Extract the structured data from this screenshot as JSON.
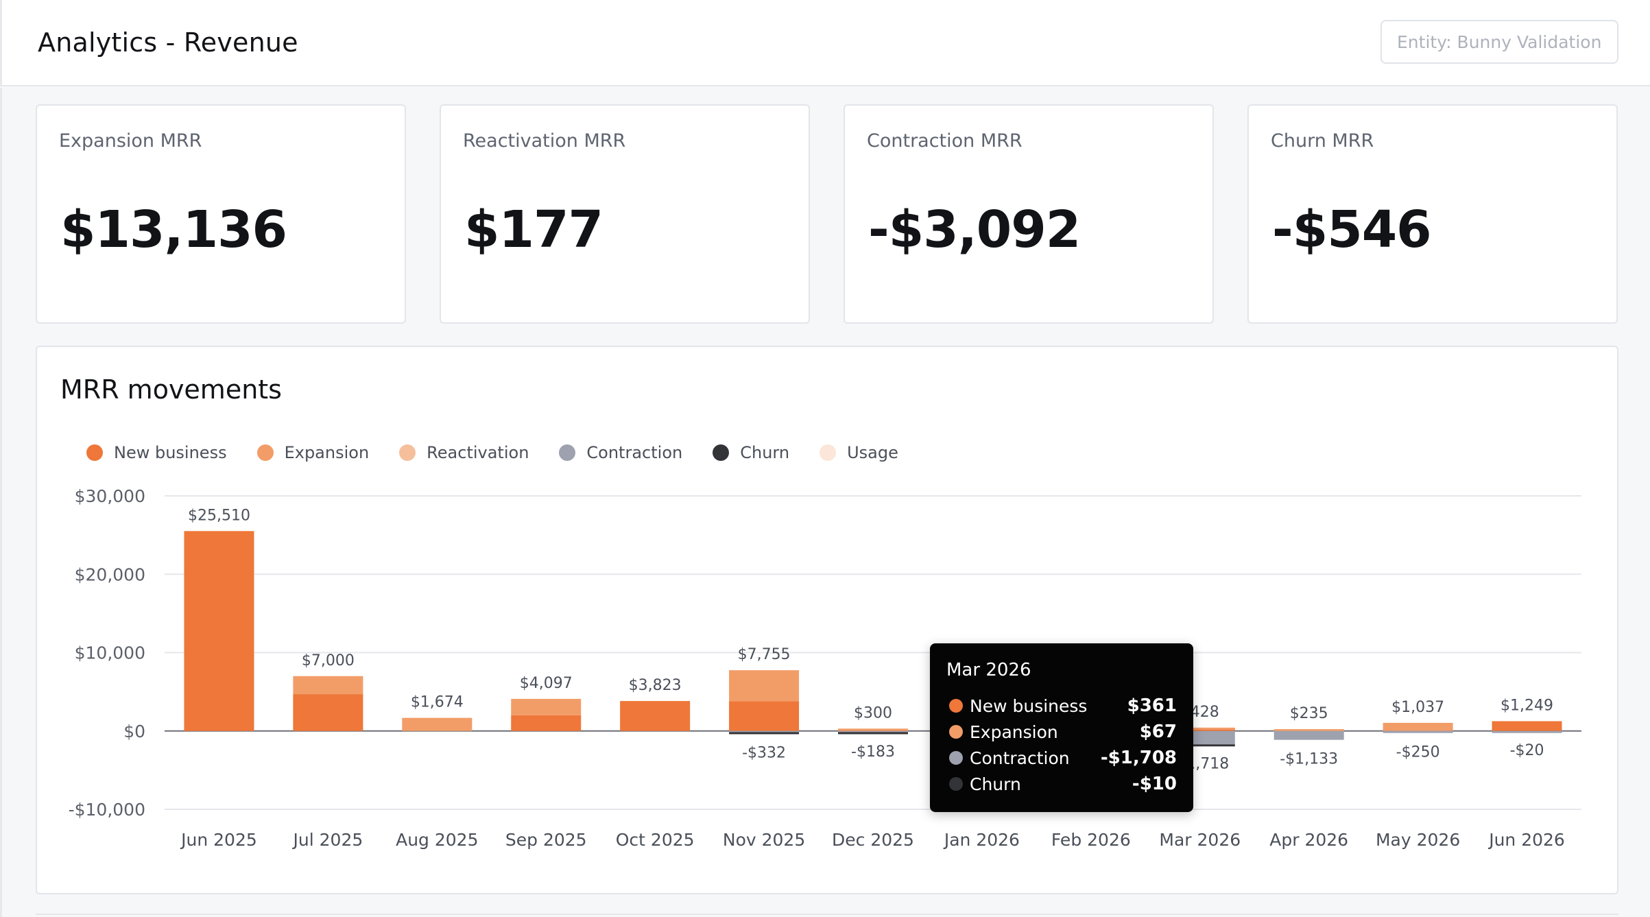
{
  "header": {
    "title": "Analytics - Revenue",
    "entity_placeholder": "Entity: Bunny Validation"
  },
  "kpis": [
    {
      "label": "Expansion MRR",
      "value": "$13,136"
    },
    {
      "label": "Reactivation MRR",
      "value": "$177"
    },
    {
      "label": "Contraction MRR",
      "value": "-$3,092"
    },
    {
      "label": "Churn MRR",
      "value": "-$546"
    }
  ],
  "chart": {
    "title": "MRR movements",
    "legend": [
      {
        "name": "New business",
        "color": "#ee7739"
      },
      {
        "name": "Expansion",
        "color": "#f29d68"
      },
      {
        "name": "Reactivation",
        "color": "#f5bf9c"
      },
      {
        "name": "Contraction",
        "color": "#9ea1ae"
      },
      {
        "name": "Churn",
        "color": "#333438"
      },
      {
        "name": "Usage",
        "color": "#fbe6d9"
      }
    ]
  },
  "chart_data": {
    "type": "bar",
    "stacked": true,
    "categories": [
      "Jun 2025",
      "Jul 2025",
      "Aug 2025",
      "Sep 2025",
      "Oct 2025",
      "Nov 2025",
      "Dec 2025",
      "Jan 2026",
      "Feb 2026",
      "Mar 2026",
      "Apr 2026",
      "May 2026",
      "Jun 2026"
    ],
    "series": [
      {
        "name": "New business",
        "color": "#ee7739",
        "values": [
          25510,
          4700,
          0,
          2000,
          3823,
          3800,
          150,
          0,
          0,
          361,
          100,
          0,
          1249
        ]
      },
      {
        "name": "Expansion",
        "color": "#f29d68",
        "values": [
          0,
          2300,
          1674,
          2097,
          0,
          3955,
          150,
          0,
          0,
          67,
          135,
          1037,
          0
        ]
      },
      {
        "name": "Reactivation",
        "color": "#f5bf9c",
        "values": [
          0,
          0,
          0,
          0,
          0,
          0,
          0,
          0,
          0,
          0,
          0,
          0,
          0
        ]
      },
      {
        "name": "Contraction",
        "color": "#9ea1ae",
        "values": [
          0,
          0,
          0,
          0,
          0,
          -150,
          -150,
          0,
          0,
          -1708,
          -1133,
          -250,
          -20
        ]
      },
      {
        "name": "Churn",
        "color": "#333438",
        "values": [
          0,
          0,
          0,
          0,
          0,
          -182,
          -33,
          0,
          0,
          -10,
          0,
          0,
          0
        ]
      },
      {
        "name": "Usage",
        "color": "#fbe6d9",
        "values": [
          0,
          0,
          0,
          0,
          0,
          0,
          0,
          0,
          0,
          0,
          0,
          0,
          0
        ]
      }
    ],
    "positive_labels": [
      "$25,510",
      "$7,000",
      "$1,674",
      "$4,097",
      "$3,823",
      "$7,755",
      "$300",
      "",
      "",
      "$428",
      "$235",
      "$1,037",
      "$1,249"
    ],
    "negative_labels": [
      "",
      "",
      "",
      "",
      "",
      "-$332",
      "-$183",
      "",
      "",
      "-$1,718",
      "-$1,133",
      "-$250",
      "-$20"
    ],
    "ylim": [
      -10000,
      30000
    ],
    "yticks": [
      {
        "value": 30000,
        "label": "$30,000"
      },
      {
        "value": 20000,
        "label": "$20,000"
      },
      {
        "value": 10000,
        "label": "$10,000"
      },
      {
        "value": 0,
        "label": "$0"
      },
      {
        "value": -10000,
        "label": "-$10,000"
      }
    ],
    "grid": true,
    "legend_position": "top-left"
  },
  "tooltip": {
    "title": "Mar 2026",
    "rows": [
      {
        "label": "New business",
        "value": "$361",
        "color": "#ee7739"
      },
      {
        "label": "Expansion",
        "value": "$67",
        "color": "#f29d68"
      },
      {
        "label": "Contraction",
        "value": "-$1,708",
        "color": "#9ea1ae"
      },
      {
        "label": "Churn",
        "value": "-$10",
        "color": "#333438"
      }
    ]
  }
}
